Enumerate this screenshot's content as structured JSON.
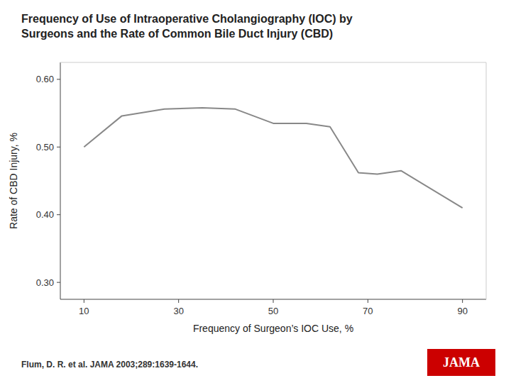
{
  "chart_data": {
    "type": "line",
    "title": "Frequency of Use of Intraoperative Cholangiography (IOC) by\nSurgeons and the Rate of Common Bile Duct Injury (CBD)",
    "xlabel": "Frequency of Surgeon’s IOC Use, %",
    "ylabel": "Rate of CBD Injury, %",
    "x": [
      10,
      18,
      27,
      35,
      42,
      50,
      57,
      62,
      68,
      72,
      77,
      90
    ],
    "values": [
      0.5,
      0.546,
      0.556,
      0.558,
      0.556,
      0.535,
      0.535,
      0.53,
      0.462,
      0.46,
      0.465,
      0.41
    ],
    "color": "#888888",
    "xlim": [
      5,
      95
    ],
    "ylim": [
      0.275,
      0.625
    ],
    "xticks": [
      10,
      30,
      50,
      70,
      90
    ],
    "yticks": [
      {
        "value": 0.3,
        "label": "0.30"
      },
      {
        "value": 0.4,
        "label": "0.40"
      },
      {
        "value": 0.5,
        "label": "0.50"
      },
      {
        "value": 0.6,
        "label": "0.60"
      }
    ],
    "grid": false,
    "annotations": [
      "Flum, D. R. et al. JAMA 2003;289:1639-1644.",
      "JAMA"
    ]
  }
}
